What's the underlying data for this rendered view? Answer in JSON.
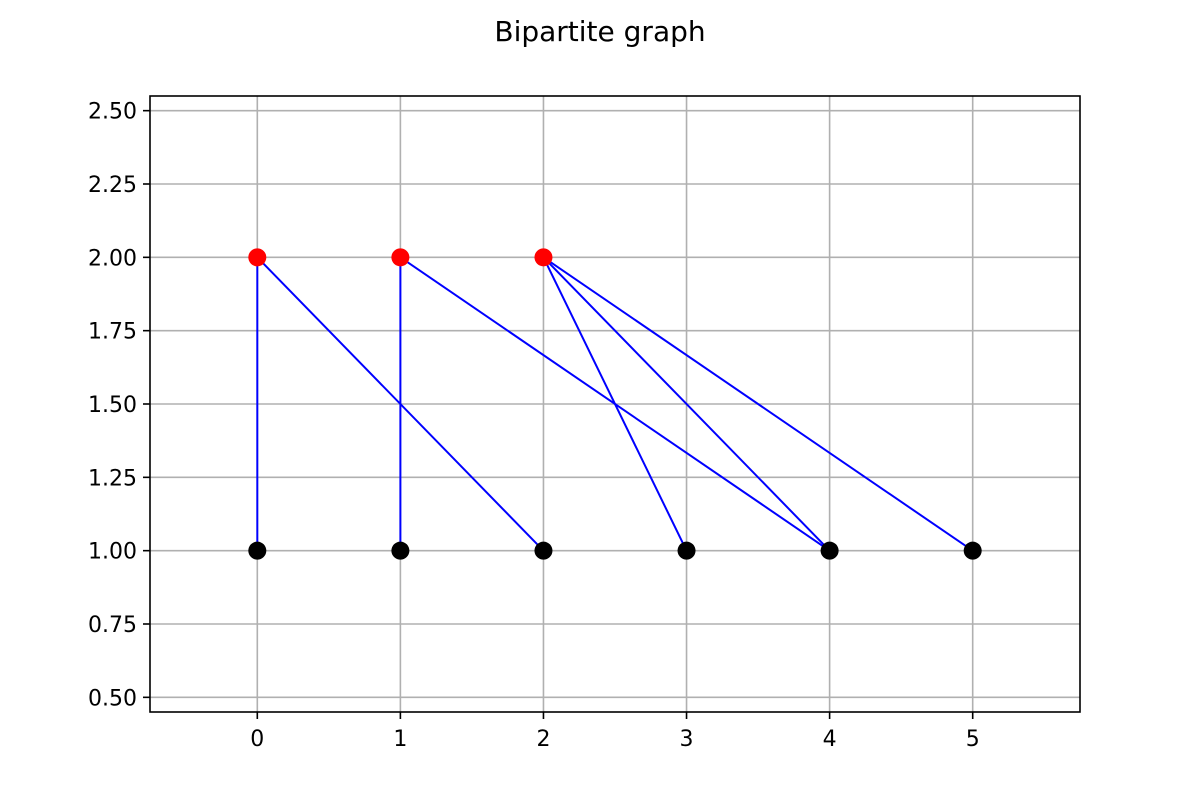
{
  "chart_data": {
    "type": "scatter",
    "title": "Bipartite graph",
    "xlabel": "",
    "ylabel": "",
    "xlim": [
      -0.75,
      5.75
    ],
    "ylim": [
      0.45,
      2.55
    ],
    "xticks": [
      0,
      1,
      2,
      3,
      4,
      5
    ],
    "xtick_labels": [
      "0",
      "1",
      "2",
      "3",
      "4",
      "5"
    ],
    "yticks": [
      0.5,
      0.75,
      1.0,
      1.25,
      1.5,
      1.75,
      2.0,
      2.25,
      2.5
    ],
    "ytick_labels": [
      "0.50",
      "0.75",
      "1.00",
      "1.25",
      "1.50",
      "1.75",
      "2.00",
      "2.25",
      "2.50"
    ],
    "grid": true,
    "node_sets": [
      {
        "color": "#ff0000",
        "points": [
          {
            "x": 0,
            "y": 2
          },
          {
            "x": 1,
            "y": 2
          },
          {
            "x": 2,
            "y": 2
          }
        ]
      },
      {
        "color": "#000000",
        "points": [
          {
            "x": 0,
            "y": 1
          },
          {
            "x": 1,
            "y": 1
          },
          {
            "x": 2,
            "y": 1
          },
          {
            "x": 3,
            "y": 1
          },
          {
            "x": 4,
            "y": 1
          },
          {
            "x": 5,
            "y": 1
          }
        ]
      }
    ],
    "edge_color": "#0000ff",
    "edges": [
      {
        "from": [
          0,
          2
        ],
        "to": [
          0,
          1
        ]
      },
      {
        "from": [
          0,
          2
        ],
        "to": [
          2,
          1
        ]
      },
      {
        "from": [
          1,
          2
        ],
        "to": [
          1,
          1
        ]
      },
      {
        "from": [
          1,
          2
        ],
        "to": [
          4,
          1
        ]
      },
      {
        "from": [
          2,
          2
        ],
        "to": [
          3,
          1
        ]
      },
      {
        "from": [
          2,
          2
        ],
        "to": [
          4,
          1
        ]
      },
      {
        "from": [
          2,
          2
        ],
        "to": [
          5,
          1
        ]
      }
    ]
  }
}
